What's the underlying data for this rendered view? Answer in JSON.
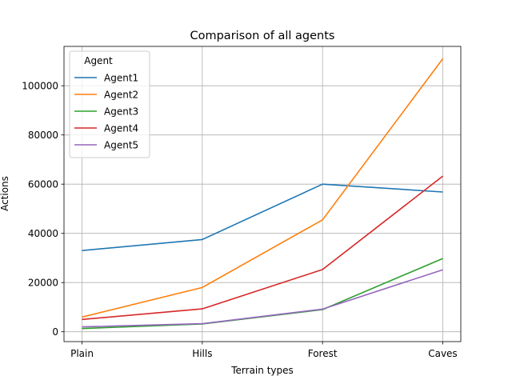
{
  "chart_data": {
    "type": "line",
    "title": "Comparison of all agents",
    "xlabel": "Terrain types",
    "ylabel": "Actions",
    "categories": [
      "Plain",
      "Hills",
      "Forest",
      "Caves"
    ],
    "ylim": [
      -4000,
      116000
    ],
    "yticks": [
      0,
      20000,
      40000,
      60000,
      80000,
      100000
    ],
    "grid": true,
    "legend": {
      "title": "Agent",
      "placement": "top-left"
    },
    "series": [
      {
        "name": "Agent1",
        "color": "#1f77b4",
        "values": [
          33000,
          37500,
          60000,
          56800
        ]
      },
      {
        "name": "Agent2",
        "color": "#ff7f0e",
        "values": [
          6000,
          18000,
          45500,
          111000
        ]
      },
      {
        "name": "Agent3",
        "color": "#2ca02c",
        "values": [
          1300,
          3200,
          9000,
          29800
        ]
      },
      {
        "name": "Agent4",
        "color": "#d62728",
        "values": [
          5000,
          9300,
          25300,
          63300
        ]
      },
      {
        "name": "Agent5",
        "color": "#9467bd",
        "values": [
          2000,
          3300,
          9200,
          25200
        ]
      }
    ]
  }
}
